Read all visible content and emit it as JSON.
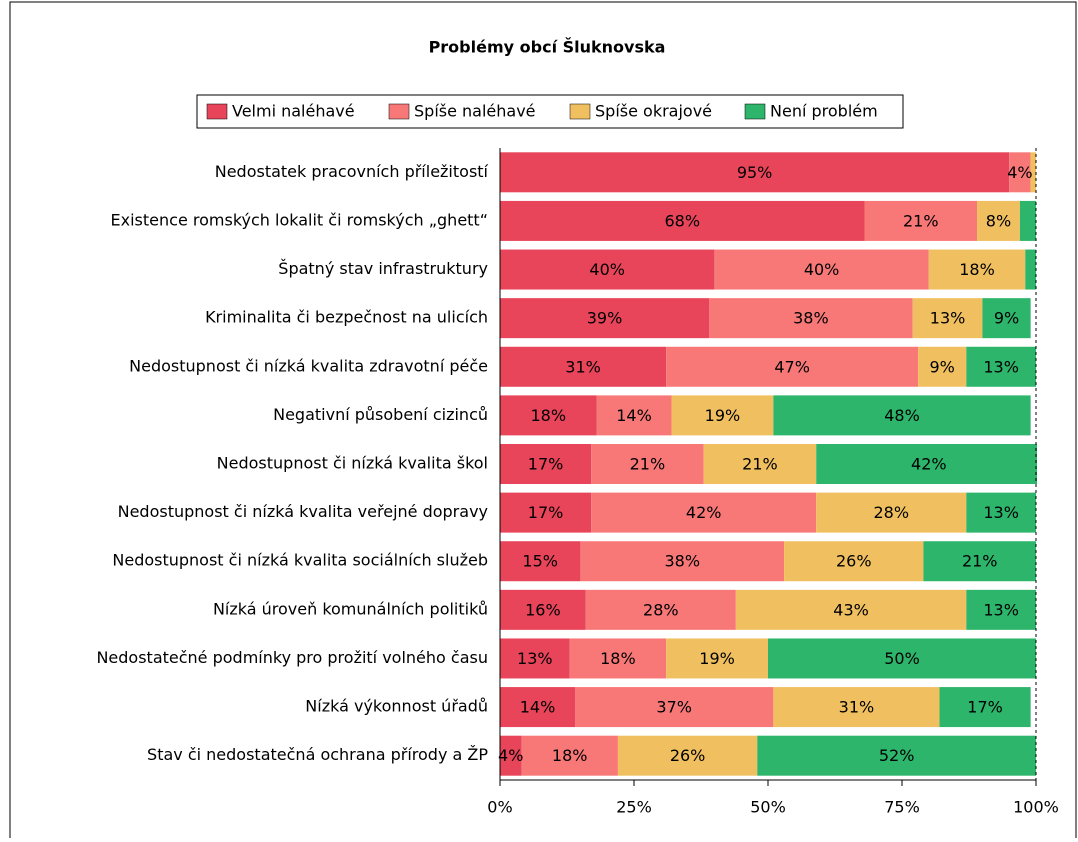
{
  "chart_data": {
    "type": "stacked_bar_horizontal",
    "title": "Problémy obcí Šluknovska",
    "categories": [
      "Nedostatek pracovních příležitostí",
      "Existence romských lokalit či romských „ghett“",
      "Špatný stav infrastruktury",
      "Kriminalita či bezpečnost na ulicích",
      "Nedostupnost či nízká kvalita zdravotní péče",
      "Negativní působení cizinců",
      "Nedostupnost či nízká kvalita škol",
      "Nedostupnost či nízká kvalita veřejné dopravy",
      "Nedostupnost či nízká kvalita sociálních služeb",
      "Nízká úroveň komunálních politiků",
      "Nedostatečné podmínky pro prožití volného času",
      "Nízká výkonnost úřadů",
      "Stav či nedostatečná ochrana přírody a ŽP"
    ],
    "series": [
      {
        "name": "Velmi naléhavé",
        "color": "#e8445a",
        "values": [
          95,
          68,
          40,
          39,
          31,
          18,
          17,
          17,
          15,
          16,
          13,
          14,
          4
        ],
        "value_labels": [
          "95%",
          "68%",
          "40%",
          "39%",
          "31%",
          "18%",
          "17%",
          "17%",
          "15%",
          "16%",
          "13%",
          "14%",
          "4%"
        ]
      },
      {
        "name": "Spíše naléhavé",
        "color": "#f87878",
        "values": [
          4,
          21,
          40,
          38,
          47,
          14,
          21,
          42,
          38,
          28,
          18,
          37,
          18
        ],
        "value_labels": [
          "4%",
          "21%",
          "40%",
          "38%",
          "47%",
          "14%",
          "21%",
          "42%",
          "38%",
          "28%",
          "18%",
          "37%",
          "18%"
        ]
      },
      {
        "name": "Spíše okrajové",
        "color": "#f0c060",
        "values": [
          1,
          8,
          18,
          13,
          9,
          19,
          21,
          28,
          26,
          43,
          19,
          31,
          26
        ],
        "value_labels": [
          null,
          "8%",
          "18%",
          "13%",
          "9%",
          "19%",
          "21%",
          "28%",
          "26%",
          "43%",
          "19%",
          "31%",
          "26%"
        ]
      },
      {
        "name": "Není problém",
        "color": "#2db56b",
        "values": [
          0,
          3,
          2,
          9,
          13,
          48,
          42,
          13,
          21,
          13,
          50,
          17,
          52
        ],
        "value_labels": [
          null,
          null,
          null,
          "9%",
          "13%",
          "48%",
          "42%",
          "13%",
          "21%",
          "13%",
          "50%",
          "17%",
          "52%"
        ]
      }
    ],
    "xlim": [
      0,
      100
    ],
    "xticks": [
      {
        "value": 0,
        "label": "0%"
      },
      {
        "value": 25,
        "label": "25%"
      },
      {
        "value": 50,
        "label": "50%"
      },
      {
        "value": 75,
        "label": "75%"
      },
      {
        "value": 100,
        "label": "100%"
      }
    ],
    "legend": "top"
  }
}
